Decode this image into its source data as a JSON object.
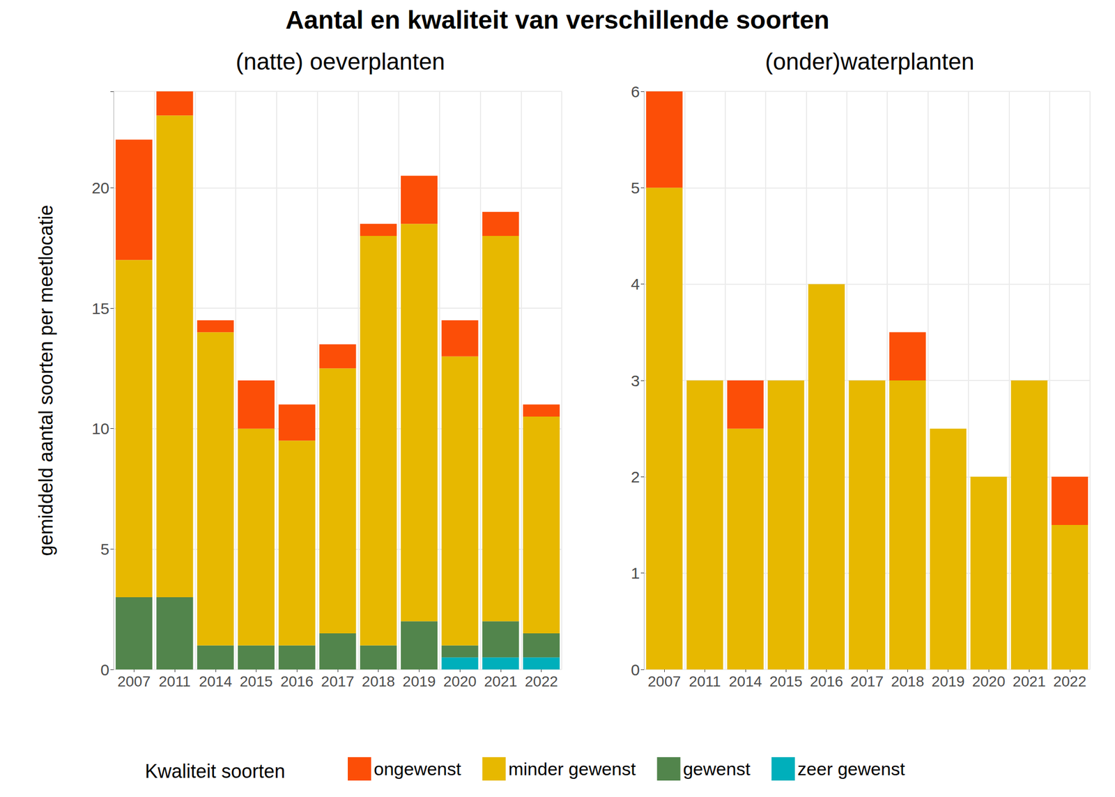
{
  "title": "Aantal en kwaliteit van verschillende soorten",
  "legend_title": "Kwaliteit soorten",
  "legend": "bottom",
  "chart_data": [
    {
      "type": "bar",
      "title": "(natte) oeverplanten",
      "ylabel": "gemiddeld aantal soorten per meetlocatie",
      "stacked": true,
      "grid": true,
      "categories": [
        "2007",
        "2011",
        "2014",
        "2015",
        "2016",
        "2017",
        "2018",
        "2019",
        "2020",
        "2021",
        "2022"
      ],
      "ylim": [
        0,
        24
      ],
      "yticks": [
        0,
        5,
        10,
        15,
        20
      ],
      "series": [
        {
          "name": "zeer gewenst",
          "color": "#00AFBB",
          "values": [
            0,
            0,
            0,
            0,
            0,
            0,
            0,
            0,
            0.5,
            0.5,
            0.5
          ]
        },
        {
          "name": "gewenst",
          "color": "#52854C",
          "values": [
            3,
            3,
            1,
            1,
            1,
            1.5,
            1,
            2,
            0.5,
            1.5,
            1
          ]
        },
        {
          "name": "minder gewenst",
          "color": "#E7B800",
          "values": [
            14,
            20,
            13,
            9,
            8.5,
            11,
            17,
            16.5,
            12,
            16,
            9
          ]
        },
        {
          "name": "ongewenst",
          "color": "#FC4E07",
          "values": [
            5,
            1,
            0.5,
            2,
            1.5,
            1,
            0.5,
            2,
            1.5,
            1,
            0.5
          ]
        }
      ]
    },
    {
      "type": "bar",
      "title": "(onder)waterplanten",
      "stacked": true,
      "grid": true,
      "categories": [
        "2007",
        "2011",
        "2014",
        "2015",
        "2016",
        "2017",
        "2018",
        "2019",
        "2020",
        "2021",
        "2022"
      ],
      "ylim": [
        0,
        6
      ],
      "yticks": [
        0,
        1,
        2,
        3,
        4,
        5,
        6
      ],
      "series": [
        {
          "name": "minder gewenst",
          "color": "#E7B800",
          "values": [
            5,
            3,
            2.5,
            3,
            4,
            3,
            3,
            2.5,
            2,
            3,
            1.5
          ]
        },
        {
          "name": "ongewenst",
          "color": "#FC4E07",
          "values": [
            1,
            0,
            0.5,
            0,
            0,
            0,
            0.5,
            0,
            0,
            0,
            0.5
          ]
        }
      ]
    }
  ]
}
